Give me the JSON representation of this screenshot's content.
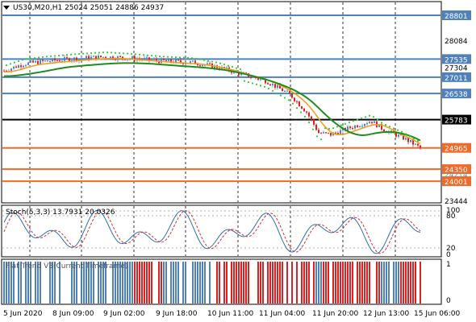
{
  "header": {
    "symbol": "US30,M20,H1",
    "open": "25024",
    "high": "25051",
    "low": "24886",
    "close": "24937"
  },
  "price_axis": {
    "ticks": [
      "28801",
      "28084",
      "27535",
      "27304",
      "27011",
      "26538",
      "25783",
      "24965",
      "24350",
      "24001",
      "23444"
    ],
    "faint_label": "24214"
  },
  "levels": [
    {
      "price": 28801,
      "label": "28801",
      "kind": "resistance",
      "color": "#4f81bd"
    },
    {
      "price": 27535,
      "label": "27535",
      "kind": "resistance",
      "color": "#4f81bd"
    },
    {
      "price": 27011,
      "label": "27011",
      "kind": "resistance",
      "color": "#4f81bd"
    },
    {
      "price": 26538,
      "label": "26538",
      "kind": "resistance",
      "color": "#4f81bd"
    },
    {
      "price": 25783,
      "label": "25783",
      "kind": "pivot",
      "color": "#000000"
    },
    {
      "price": 24965,
      "label": "24965",
      "kind": "support",
      "color": "#f06a2a"
    },
    {
      "price": 24350,
      "label": "24350",
      "kind": "support",
      "color": "#f06a2a"
    },
    {
      "price": 24001,
      "label": "24001",
      "kind": "support",
      "color": "#f06a2a"
    }
  ],
  "stoch": {
    "title": "Stoch(5,3,3) 13.7931 20.0326",
    "axis": [
      "100",
      "80",
      "20",
      "0"
    ]
  },
  "flat_trend": {
    "title": "Flat Trend V3(Current Timeframe)",
    "axis": [
      "1",
      "0"
    ],
    "colors": {
      "up": "#4f81bd",
      "down": "#e02020"
    }
  },
  "time_axis": [
    "5 Jun 2020",
    "8 Jun 09:00",
    "9 Jun 02:00",
    "9 Jun 18:00",
    "10 Jun 11:00",
    "11 Jun 04:00",
    "11 Jun 20:00",
    "12 Jun 13:00",
    "15 Jun 06:00"
  ],
  "colors": {
    "bull_candle": "#4f81bd",
    "bear_candle": "#e02020",
    "ma_fast": "#f0a020",
    "ma_slow": "#1e8c1e",
    "psar": "#33cc33",
    "grid": "#000000"
  }
}
